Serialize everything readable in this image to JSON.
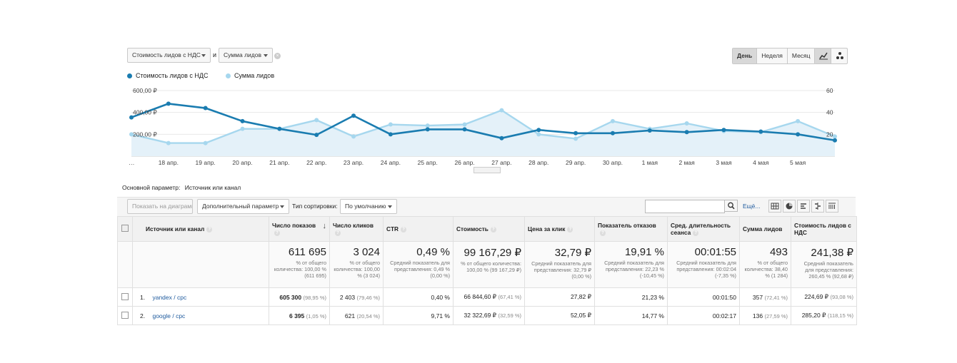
{
  "selectors": {
    "metric1": "Стоимость лидов с НДС",
    "conj": "и",
    "metric2": "Сумма лидов"
  },
  "period": {
    "day": "День",
    "week": "Неделя",
    "month": "Месяц"
  },
  "colors": {
    "series1": "#1a7cb0",
    "series2": "#a6d7ee",
    "area": "#e4f1f9"
  },
  "chart_data": {
    "type": "line",
    "categories": [
      "…",
      "18 апр.",
      "19 апр.",
      "20 апр.",
      "21 апр.",
      "22 апр.",
      "23 апр.",
      "24 апр.",
      "25 апр.",
      "26 апр.",
      "27 апр.",
      "28 апр.",
      "29 апр.",
      "30 апр.",
      "1 мая",
      "2 мая",
      "3 мая",
      "4 мая",
      "5 мая",
      ""
    ],
    "series": [
      {
        "name": "Стоимость лидов с НДС",
        "axis": "left",
        "values": [
          355,
          480,
          440,
          320,
          250,
          195,
          370,
          200,
          245,
          245,
          165,
          240,
          210,
          210,
          235,
          220,
          240,
          225,
          200,
          145
        ]
      },
      {
        "name": "Сумма лидов",
        "axis": "right",
        "values": [
          20,
          12,
          12,
          25,
          25,
          33,
          18,
          29,
          28,
          29,
          42,
          20,
          16,
          32,
          25,
          30,
          23,
          22,
          32,
          18
        ]
      }
    ],
    "left_axis": {
      "ylim": [
        0,
        600
      ],
      "ticks": [
        "200,00 ₽",
        "400,00 ₽",
        "600,00 ₽"
      ]
    },
    "right_axis": {
      "ylim": [
        0,
        60
      ],
      "ticks": [
        "20",
        "40",
        "60"
      ]
    }
  },
  "primary_param": {
    "label": "Основной параметр:",
    "value": "Источник или канал"
  },
  "controls": {
    "show_on_chart": "Показать на диаграмме",
    "secondary": "Дополнительный параметр",
    "sort_label": "Тип сортировки:",
    "sort_value": "По умолчанию",
    "more": "Ещё..."
  },
  "table": {
    "headers": [
      "Источник или канал",
      "Число показов",
      "Число кликов",
      "CTR",
      "Стоимость",
      "Цена за клик",
      "Показатель отказов",
      "Сред. длительность сеанса",
      "Сумма лидов",
      "Стоимость лидов с НДС"
    ],
    "totals": [
      {
        "big": "611 695",
        "sub": "% от общего количества: 100,00 % (611 695)"
      },
      {
        "big": "3 024",
        "sub": "% от общего количества: 100,00 % (3 024)"
      },
      {
        "big": "0,49 %",
        "sub": "Средний показатель для представления: 0,49 % (0,00 %)"
      },
      {
        "big": "99 167,29 ₽",
        "sub": "% от общего количества: 100,00 % (99 167,29 ₽)"
      },
      {
        "big": "32,79 ₽",
        "sub": "Средний показатель для представления: 32,79 ₽ (0,00 %)"
      },
      {
        "big": "19,91 %",
        "sub": "Средний показатель для представления: 22,23 % (-10,45 %)"
      },
      {
        "big": "00:01:55",
        "sub": "Средний показатель для представления: 00:02:04 (-7,35 %)"
      },
      {
        "big": "493",
        "sub": "% от общего количества: 38,40 % (1 284)"
      },
      {
        "big": "241,38 ₽",
        "sub": "Средний показатель для представления: 260,45 % (92,68 ₽)"
      }
    ],
    "rows": [
      {
        "num": "1.",
        "source": "yandex / cpc",
        "imp": "605 300",
        "imp_pct": "(98,95 %)",
        "clk": "2 403",
        "clk_pct": "(79,46 %)",
        "ctr": "0,40 %",
        "cost": "66 844,60 ₽",
        "cost_pct": "(67,41 %)",
        "cpc": "27,82 ₽",
        "bounce": "21,23 %",
        "dur": "00:01:50",
        "leads": "357",
        "leads_pct": "(72,41 %)",
        "lcost": "224,69 ₽",
        "lcost_pct": "(93,08 %)"
      },
      {
        "num": "2.",
        "source": "google / cpc",
        "imp": "6 395",
        "imp_pct": "(1,05 %)",
        "clk": "621",
        "clk_pct": "(20,54 %)",
        "ctr": "9,71 %",
        "cost": "32 322,69 ₽",
        "cost_pct": "(32,59 %)",
        "cpc": "52,05 ₽",
        "bounce": "14,77 %",
        "dur": "00:02:17",
        "leads": "136",
        "leads_pct": "(27,59 %)",
        "lcost": "285,20 ₽",
        "lcost_pct": "(118,15 %)"
      }
    ]
  }
}
